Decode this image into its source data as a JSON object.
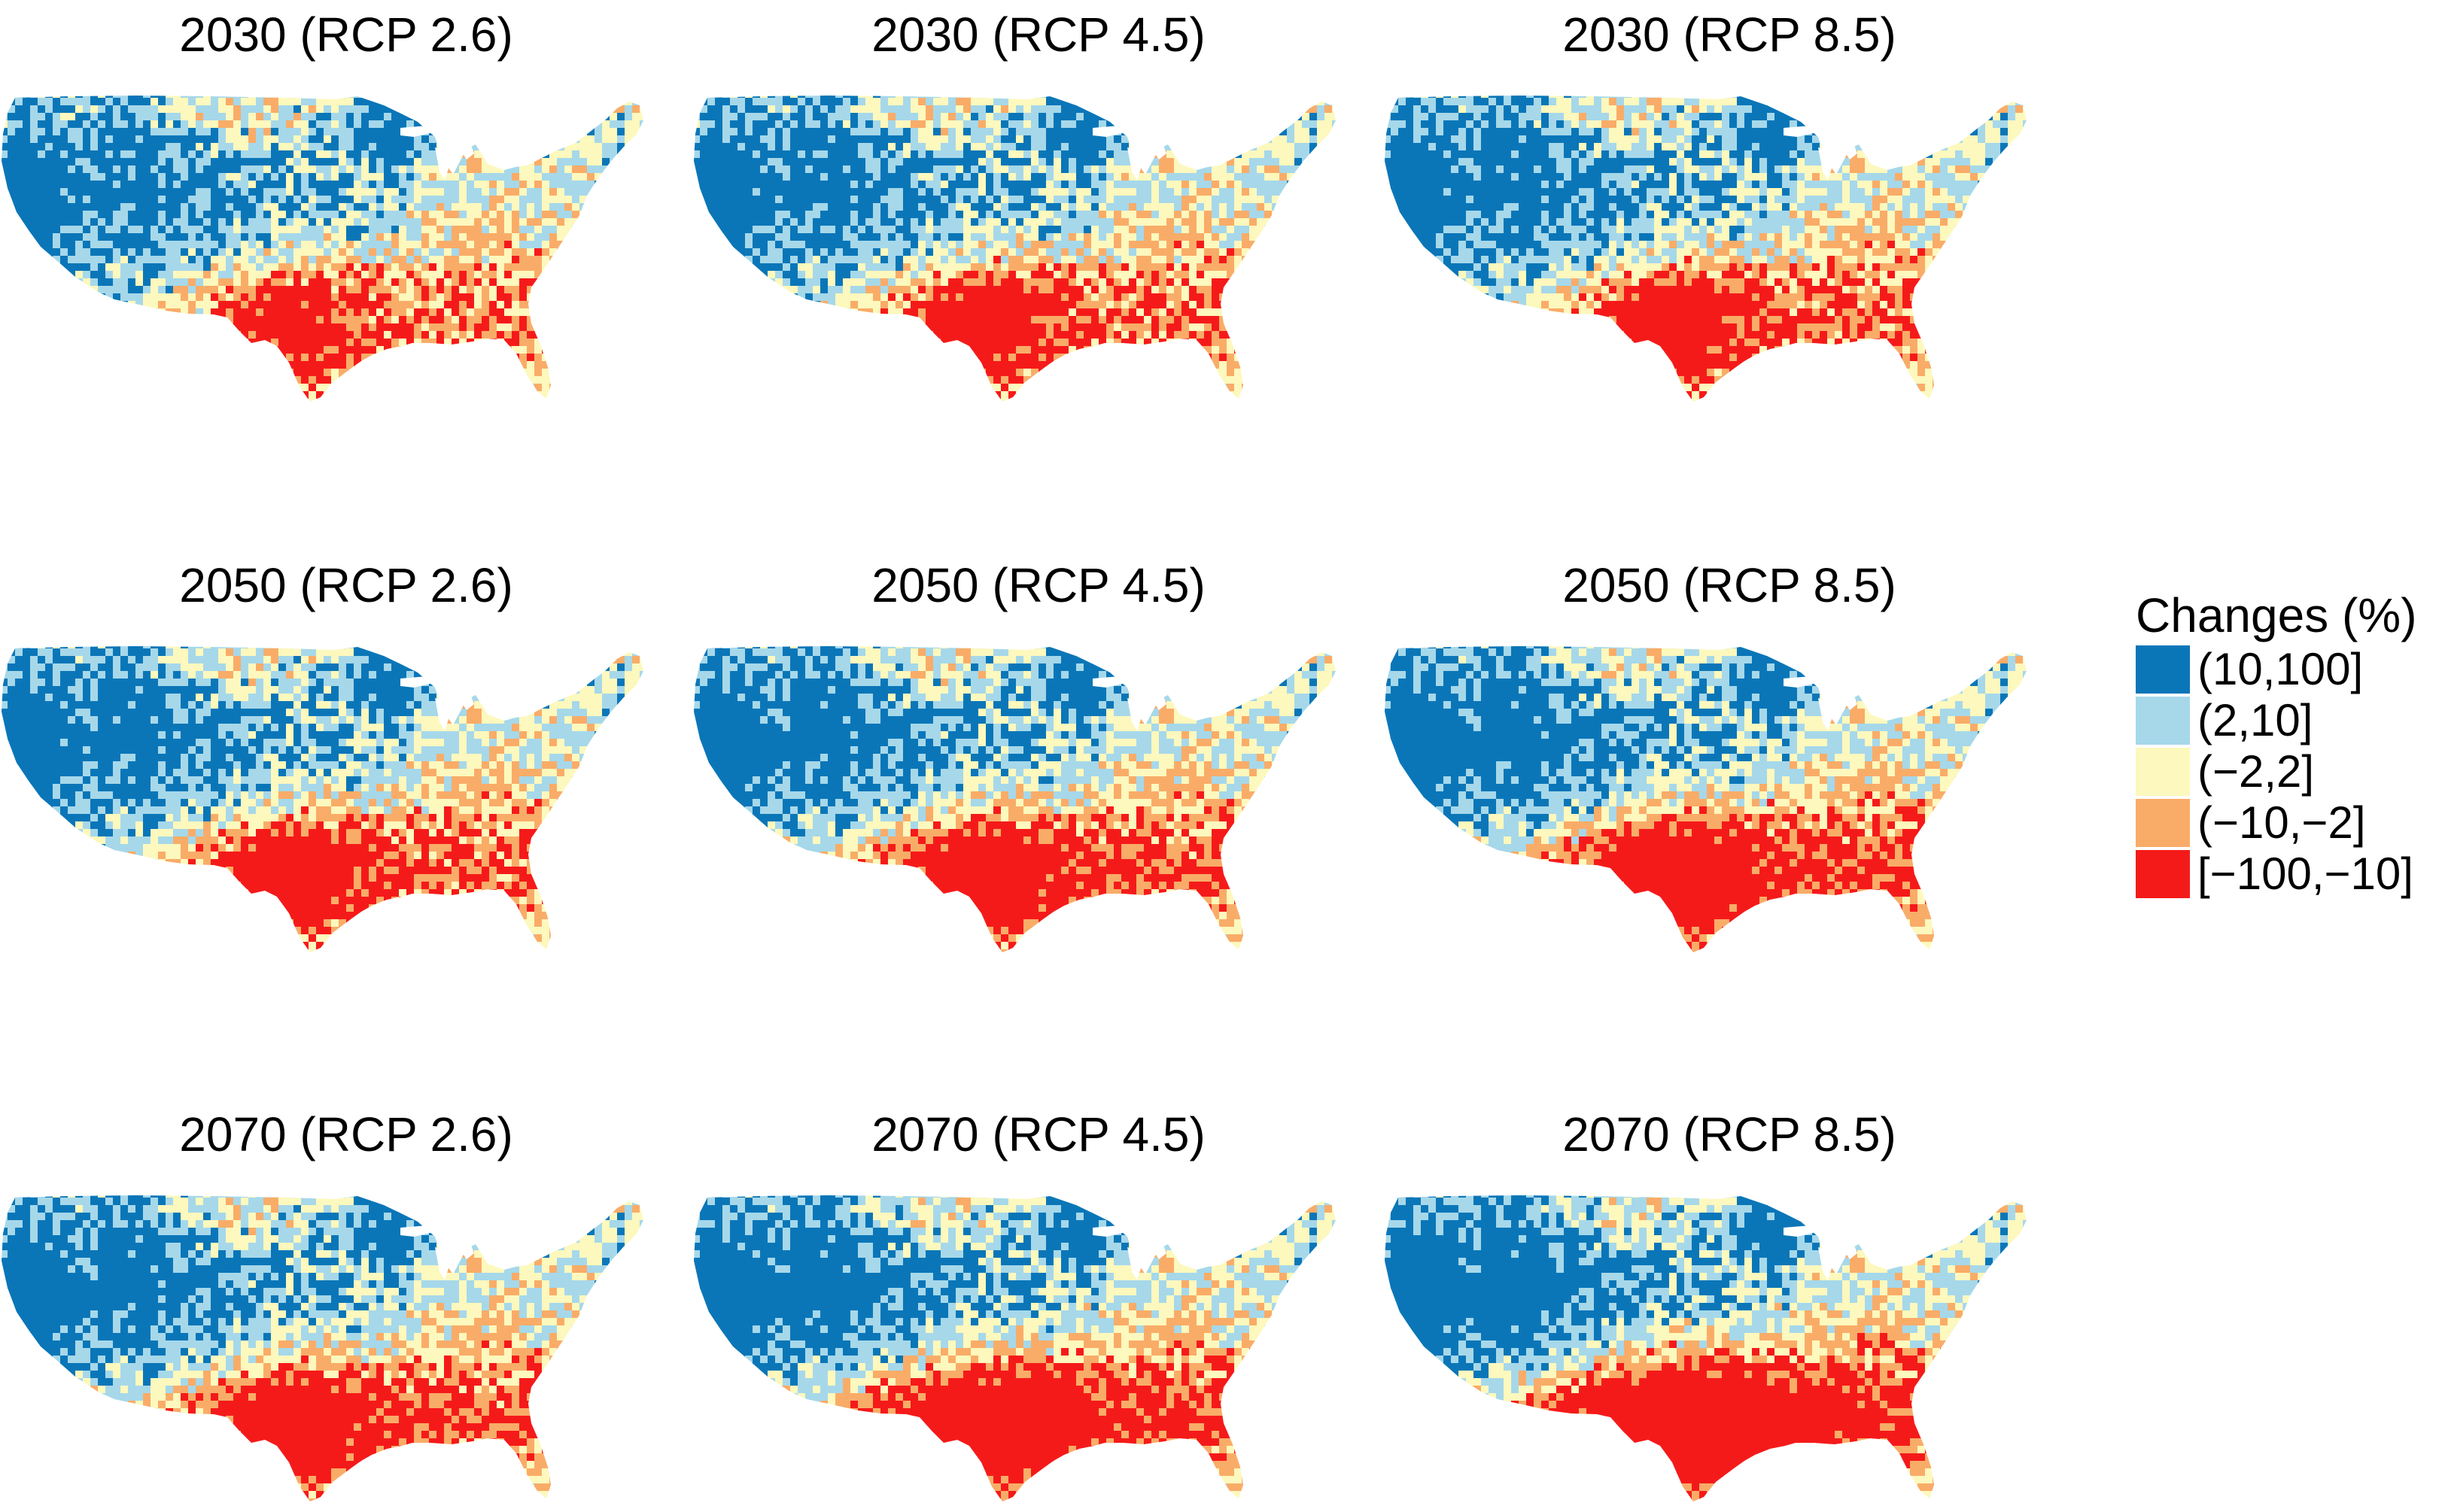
{
  "panels": [
    {
      "title": "2030 (RCP 2.6)",
      "severity": 0.25
    },
    {
      "title": "2030 (RCP 4.5)",
      "severity": 0.35
    },
    {
      "title": "2030 (RCP 8.5)",
      "severity": 0.4
    },
    {
      "title": "2050 (RCP 2.6)",
      "severity": 0.45
    },
    {
      "title": "2050 (RCP 4.5)",
      "severity": 0.55
    },
    {
      "title": "2050 (RCP 8.5)",
      "severity": 0.65
    },
    {
      "title": "2070 (RCP 2.6)",
      "severity": 0.55
    },
    {
      "title": "2070 (RCP 4.5)",
      "severity": 0.8
    },
    {
      "title": "2070 (RCP 8.5)",
      "severity": 1.0
    }
  ],
  "legend": {
    "title": "Changes (%)",
    "items": [
      {
        "label": "(10,100]",
        "color": "#0a76b8"
      },
      {
        "label": "(2,10]",
        "color": "#a6d8ea"
      },
      {
        "label": "(−2,2]",
        "color": "#fdf8bd"
      },
      {
        "label": "(−10,−2]",
        "color": "#f9ac68"
      },
      {
        "label": "[−100,−10]",
        "color": "#f51a1a"
      }
    ]
  }
}
